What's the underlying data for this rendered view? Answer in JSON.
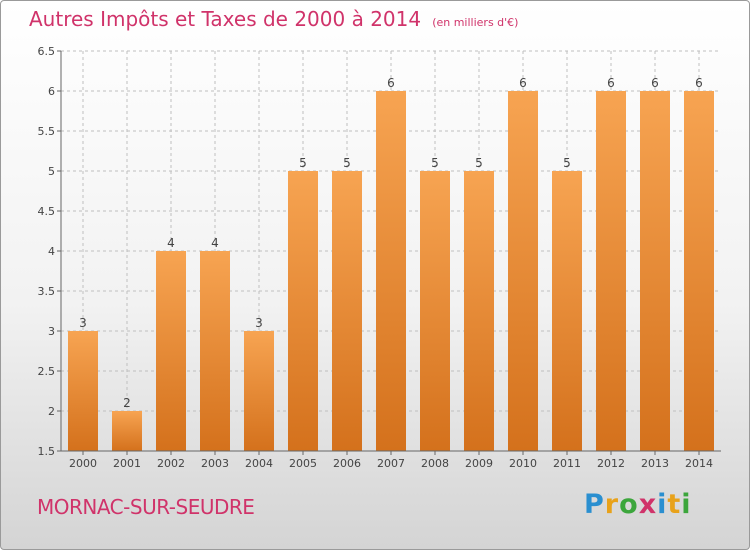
{
  "chart_data": {
    "type": "bar",
    "title": "Autres Impôts et Taxes de 2000 à 2014",
    "subtitle": "(en milliers d'€)",
    "categories": [
      "2000",
      "2001",
      "2002",
      "2003",
      "2004",
      "2005",
      "2006",
      "2007",
      "2008",
      "2009",
      "2010",
      "2011",
      "2012",
      "2013",
      "2014"
    ],
    "values": [
      3,
      2,
      4,
      4,
      3,
      5,
      5,
      6,
      5,
      5,
      6,
      5,
      6,
      6,
      6
    ],
    "ylim": [
      1.5,
      6.5
    ],
    "yticks": [
      "1.5",
      "2",
      "2.5",
      "3",
      "3.5",
      "4",
      "4.5",
      "5",
      "5.5",
      "6",
      "6.5"
    ],
    "grid": true,
    "xlabel": "",
    "ylabel": "",
    "bar_color_top": "#f7a452",
    "bar_color_bottom": "#d4711c"
  },
  "footer": {
    "commune": "MORNAC-SUR-SEUDRE",
    "brand_letters": [
      "P",
      "r",
      "o",
      "x",
      "i",
      "t",
      "i"
    ],
    "brand_colors": [
      "#2a8fd0",
      "#e8a21a",
      "#3ca63c",
      "#d0336a",
      "#2a8fd0",
      "#e8a21a",
      "#3ca63c"
    ]
  },
  "colors": {
    "title": "#d0336a",
    "grid": "#bfbfbf",
    "axis": "#666666"
  }
}
